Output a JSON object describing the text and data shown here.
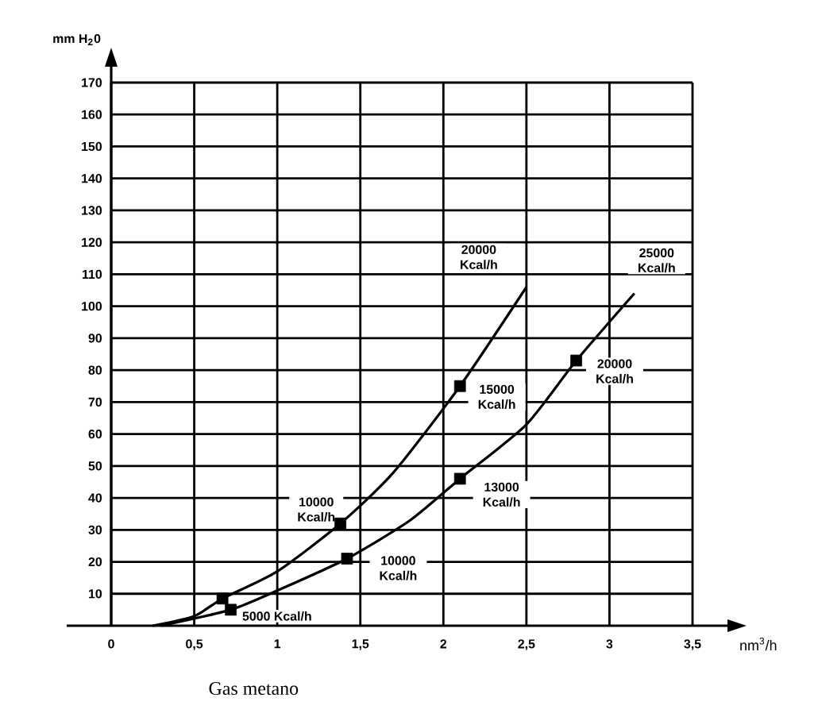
{
  "chart_data": {
    "type": "line",
    "xlabel": "nm$^{3}$/h",
    "ylabel": "mm H$_{2}$0",
    "xlim": [
      0,
      3.5
    ],
    "ylim": [
      0,
      170
    ],
    "xticks": [
      0,
      {
        "value": 0.5,
        "label": "0,5"
      },
      1,
      {
        "value": 1.5,
        "label": "1,5"
      },
      2,
      {
        "value": 2.5,
        "label": "2,5"
      },
      3,
      {
        "value": 3.5,
        "label": "3,5"
      }
    ],
    "yticks": [
      10,
      20,
      30,
      40,
      50,
      60,
      70,
      80,
      90,
      100,
      110,
      120,
      130,
      140,
      150,
      160,
      170
    ],
    "grid": true,
    "series": [
      {
        "type": "line",
        "color": "#000000",
        "marker": "none",
        "x": [
          0.25,
          0.5,
          0.67,
          1,
          1.38,
          1.7,
          2.1,
          2.5
        ],
        "values": [
          0,
          3,
          8.5,
          17,
          32,
          48,
          75,
          106
        ]
      },
      {
        "type": "line",
        "color": "#000000",
        "marker": "none",
        "x": [
          0.3,
          0.72,
          1,
          1.42,
          1.8,
          2.1,
          2.5,
          2.8,
          3.15
        ],
        "values": [
          0,
          5,
          11,
          21,
          33,
          46,
          63,
          83,
          104
        ]
      },
      {
        "type": "scatter",
        "color": "#000000",
        "marker": "square",
        "x": [
          0.67,
          1.38,
          2.1
        ],
        "values": [
          8.5,
          32,
          75
        ]
      },
      {
        "type": "scatter",
        "color": "#000000",
        "marker": "square",
        "x": [
          0.72,
          1.42,
          2.1,
          2.8
        ],
        "values": [
          5,
          21,
          46,
          83
        ]
      }
    ],
    "annotations": [
      {
        "text": "5000 Kcal/h",
        "x": 0.72,
        "y": 5
      },
      {
        "text": "10000 Kcal/h",
        "x": 1.38,
        "y": 32
      },
      {
        "text": "10000 Kcal/h",
        "x": 1.42,
        "y": 21
      },
      {
        "text": "15000 Kcal/h",
        "x": 2.1,
        "y": 75
      },
      {
        "text": "13000 Kcal/h",
        "x": 2.1,
        "y": 46
      },
      {
        "text": "20000 Kcal/h",
        "x": 2.8,
        "y": 83
      },
      {
        "text": "20000 Kcal/h",
        "x": 2.5,
        "y": 106
      },
      {
        "text": "25000 Kcal/h",
        "x": 3.15,
        "y": 104
      },
      "Gas metano"
    ]
  }
}
